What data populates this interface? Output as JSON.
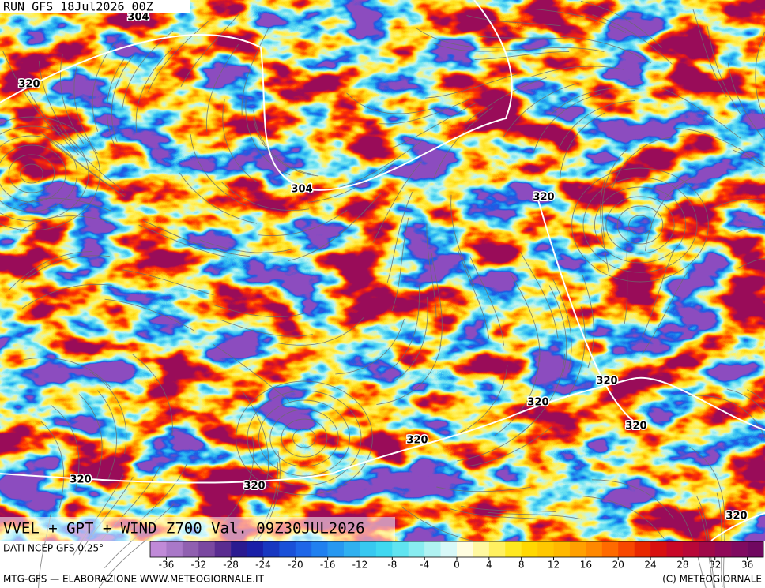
{
  "header": {
    "run": "RUN GFS 18Jul2026 00Z"
  },
  "map": {
    "contour_labels": [
      "304",
      "320",
      "304",
      "320",
      "320",
      "320",
      "320",
      "320",
      "320",
      "320",
      "320"
    ],
    "title": "VVEL + GPT + WIND Z700 Val. 09Z30JUL2026"
  },
  "legend": {
    "source": "DATI NCEP GFS 0.25°",
    "range": [
      -38,
      38
    ],
    "ticks": [
      -36,
      -32,
      -28,
      -24,
      -20,
      -16,
      -12,
      -8,
      -4,
      0,
      4,
      8,
      12,
      16,
      20,
      24,
      28,
      32,
      36
    ],
    "colors": [
      "#c08ad8",
      "#a978c8",
      "#9060b0",
      "#7a48a0",
      "#5a2c90",
      "#2a1a90",
      "#1a20a8",
      "#1838c0",
      "#1a50d8",
      "#1e66e8",
      "#2080f0",
      "#2898f0",
      "#30b0f0",
      "#38c8f0",
      "#40d8f0",
      "#60e4f0",
      "#88ecf0",
      "#b0f2f2",
      "#d8f8f8",
      "#fffde0",
      "#fff8a0",
      "#fff060",
      "#ffe820",
      "#ffd800",
      "#ffc800",
      "#ffb800",
      "#ffa000",
      "#ff8800",
      "#ff6a00",
      "#f84800",
      "#e82800",
      "#d81010",
      "#c80828",
      "#b80838",
      "#a00848",
      "#900858",
      "#800a60",
      "#700860"
    ]
  },
  "footer": {
    "left": "MTG-GFS — ELABORAZIONE WWW.METEOGIORNALE.IT",
    "right": "(C) METEOGIORNALE"
  }
}
